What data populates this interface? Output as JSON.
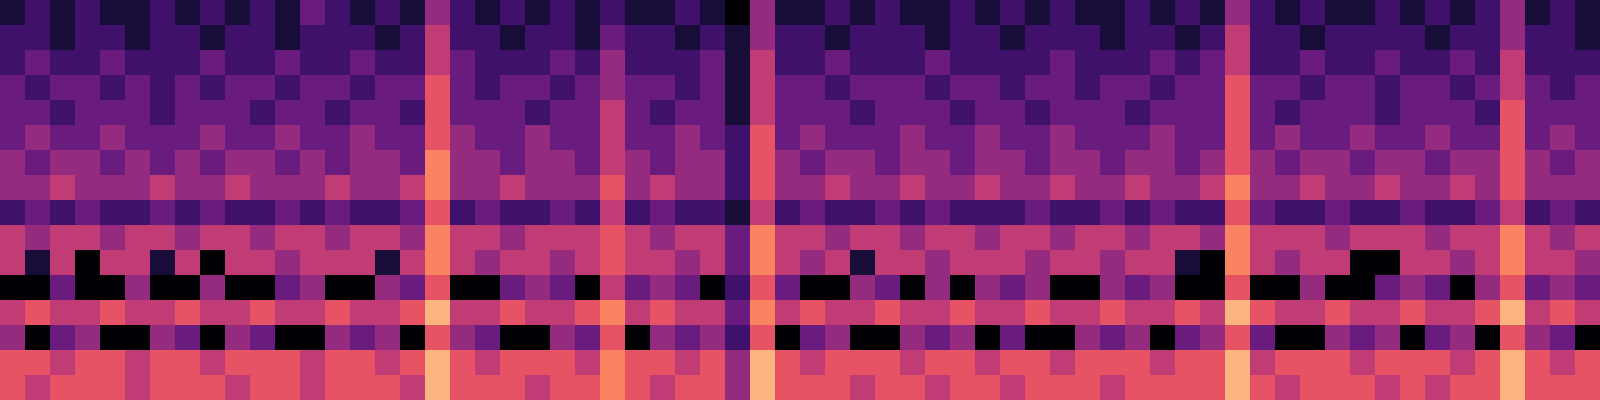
{
  "chart_data": {
    "type": "heatmap",
    "tick_labels": false,
    "cells": [
      [
        1,
        2,
        1,
        2,
        1,
        1,
        2,
        1,
        2,
        1,
        2,
        1,
        3,
        2,
        1,
        2,
        1,
        4,
        2,
        1,
        2,
        1,
        2,
        1,
        2,
        1,
        1,
        2,
        1,
        0,
        4,
        1,
        1,
        2,
        1,
        2,
        1,
        1,
        2,
        1,
        2,
        1,
        2,
        1,
        1,
        2,
        1,
        2,
        1,
        4,
        2,
        1,
        2,
        1,
        1,
        2,
        1,
        2,
        1,
        2,
        4,
        1,
        2,
        1
      ],
      [
        2,
        2,
        1,
        2,
        2,
        1,
        2,
        2,
        1,
        2,
        2,
        1,
        2,
        2,
        2,
        1,
        2,
        5,
        2,
        2,
        1,
        2,
        2,
        1,
        3,
        2,
        2,
        1,
        2,
        1,
        4,
        2,
        2,
        1,
        2,
        2,
        2,
        1,
        2,
        2,
        1,
        2,
        2,
        2,
        1,
        2,
        2,
        1,
        2,
        5,
        2,
        2,
        1,
        2,
        2,
        2,
        2,
        1,
        2,
        2,
        4,
        2,
        2,
        1
      ],
      [
        2,
        3,
        2,
        2,
        3,
        2,
        2,
        2,
        3,
        2,
        2,
        3,
        2,
        2,
        3,
        2,
        2,
        5,
        3,
        2,
        2,
        2,
        3,
        2,
        4,
        2,
        2,
        2,
        3,
        1,
        5,
        2,
        2,
        3,
        2,
        2,
        2,
        3,
        2,
        2,
        2,
        2,
        3,
        2,
        2,
        2,
        3,
        2,
        3,
        5,
        2,
        2,
        3,
        2,
        2,
        3,
        2,
        2,
        3,
        2,
        5,
        2,
        2,
        2
      ],
      [
        3,
        2,
        3,
        3,
        2,
        3,
        2,
        3,
        2,
        3,
        3,
        2,
        3,
        3,
        2,
        3,
        3,
        6,
        3,
        2,
        3,
        3,
        2,
        3,
        4,
        3,
        3,
        2,
        3,
        1,
        5,
        3,
        3,
        2,
        3,
        3,
        3,
        2,
        3,
        3,
        2,
        3,
        3,
        2,
        3,
        3,
        2,
        3,
        3,
        6,
        3,
        3,
        2,
        3,
        3,
        2,
        3,
        3,
        2,
        3,
        5,
        3,
        2,
        3
      ],
      [
        3,
        3,
        2,
        3,
        3,
        3,
        2,
        3,
        3,
        3,
        2,
        3,
        3,
        2,
        3,
        3,
        2,
        6,
        3,
        3,
        3,
        2,
        3,
        3,
        5,
        3,
        2,
        3,
        3,
        1,
        5,
        3,
        3,
        3,
        2,
        3,
        3,
        3,
        2,
        3,
        3,
        2,
        3,
        3,
        3,
        2,
        3,
        3,
        3,
        6,
        3,
        2,
        3,
        3,
        3,
        2,
        3,
        3,
        3,
        2,
        6,
        3,
        3,
        3
      ],
      [
        3,
        4,
        3,
        3,
        4,
        3,
        3,
        3,
        4,
        3,
        3,
        4,
        3,
        3,
        4,
        3,
        3,
        6,
        4,
        3,
        3,
        4,
        3,
        3,
        5,
        3,
        3,
        4,
        3,
        2,
        6,
        3,
        4,
        3,
        3,
        3,
        4,
        3,
        3,
        4,
        3,
        3,
        4,
        3,
        3,
        3,
        4,
        3,
        3,
        6,
        3,
        4,
        3,
        3,
        4,
        3,
        3,
        4,
        3,
        3,
        6,
        3,
        4,
        3
      ],
      [
        4,
        3,
        4,
        4,
        3,
        4,
        3,
        4,
        3,
        4,
        4,
        3,
        4,
        3,
        4,
        4,
        3,
        7,
        4,
        4,
        3,
        4,
        4,
        3,
        5,
        4,
        3,
        4,
        4,
        2,
        6,
        4,
        3,
        4,
        4,
        3,
        4,
        4,
        3,
        4,
        4,
        3,
        4,
        4,
        3,
        4,
        4,
        3,
        4,
        6,
        4,
        3,
        4,
        4,
        3,
        4,
        4,
        3,
        4,
        4,
        6,
        4,
        3,
        4
      ],
      [
        4,
        4,
        5,
        4,
        4,
        4,
        5,
        4,
        4,
        5,
        4,
        4,
        4,
        5,
        4,
        4,
        5,
        7,
        4,
        4,
        5,
        4,
        4,
        4,
        6,
        4,
        5,
        4,
        4,
        2,
        6,
        4,
        4,
        5,
        4,
        4,
        5,
        4,
        4,
        5,
        4,
        4,
        5,
        4,
        4,
        5,
        4,
        4,
        5,
        7,
        4,
        4,
        5,
        4,
        4,
        5,
        4,
        4,
        5,
        4,
        6,
        4,
        4,
        4
      ],
      [
        2,
        3,
        2,
        3,
        2,
        2,
        3,
        2,
        3,
        2,
        2,
        3,
        2,
        3,
        2,
        2,
        3,
        6,
        2,
        3,
        2,
        2,
        3,
        2,
        5,
        2,
        3,
        2,
        2,
        1,
        5,
        2,
        3,
        2,
        2,
        3,
        2,
        3,
        2,
        2,
        2,
        3,
        2,
        2,
        3,
        2,
        3,
        2,
        2,
        6,
        3,
        2,
        2,
        3,
        2,
        2,
        3,
        2,
        2,
        3,
        5,
        2,
        3,
        2
      ],
      [
        5,
        4,
        5,
        5,
        4,
        5,
        5,
        4,
        5,
        5,
        4,
        5,
        5,
        4,
        5,
        5,
        4,
        7,
        5,
        5,
        4,
        5,
        5,
        5,
        6,
        5,
        4,
        5,
        5,
        3,
        7,
        5,
        5,
        4,
        5,
        5,
        4,
        5,
        5,
        4,
        5,
        5,
        4,
        5,
        5,
        4,
        5,
        5,
        4,
        7,
        5,
        5,
        5,
        4,
        5,
        5,
        5,
        4,
        5,
        5,
        7,
        5,
        4,
        5
      ],
      [
        5,
        1,
        5,
        0,
        5,
        5,
        1,
        5,
        0,
        5,
        5,
        4,
        5,
        5,
        5,
        1,
        5,
        7,
        5,
        4,
        5,
        5,
        4,
        5,
        6,
        5,
        5,
        4,
        5,
        3,
        7,
        5,
        4,
        5,
        1,
        5,
        5,
        4,
        5,
        5,
        5,
        4,
        5,
        5,
        4,
        5,
        5,
        1,
        0,
        7,
        5,
        4,
        5,
        5,
        0,
        0,
        5,
        5,
        4,
        5,
        7,
        5,
        5,
        4
      ],
      [
        0,
        0,
        3,
        0,
        0,
        4,
        0,
        0,
        4,
        0,
        0,
        3,
        4,
        0,
        0,
        4,
        3,
        6,
        0,
        0,
        3,
        4,
        3,
        0,
        5,
        3,
        4,
        3,
        0,
        2,
        6,
        3,
        0,
        0,
        4,
        3,
        0,
        4,
        0,
        4,
        3,
        4,
        0,
        0,
        4,
        3,
        4,
        0,
        0,
        6,
        0,
        0,
        4,
        0,
        0,
        3,
        4,
        3,
        0,
        4,
        6,
        3,
        4,
        3
      ],
      [
        5,
        6,
        5,
        5,
        6,
        5,
        5,
        6,
        5,
        5,
        6,
        5,
        5,
        6,
        5,
        5,
        6,
        8,
        5,
        5,
        6,
        5,
        5,
        6,
        7,
        5,
        6,
        5,
        5,
        3,
        7,
        5,
        6,
        5,
        5,
        6,
        5,
        5,
        6,
        5,
        5,
        6,
        5,
        5,
        6,
        5,
        5,
        6,
        5,
        8,
        6,
        5,
        5,
        6,
        5,
        5,
        6,
        5,
        5,
        6,
        8,
        5,
        6,
        5
      ],
      [
        4,
        0,
        3,
        4,
        0,
        0,
        4,
        3,
        0,
        4,
        3,
        0,
        0,
        4,
        3,
        4,
        0,
        6,
        4,
        3,
        0,
        0,
        4,
        3,
        6,
        0,
        4,
        3,
        4,
        2,
        6,
        0,
        3,
        4,
        0,
        0,
        4,
        3,
        4,
        0,
        3,
        0,
        0,
        4,
        3,
        4,
        0,
        3,
        4,
        6,
        3,
        0,
        0,
        4,
        3,
        4,
        0,
        3,
        4,
        0,
        6,
        4,
        3,
        0
      ],
      [
        6,
        6,
        5,
        6,
        6,
        5,
        6,
        6,
        5,
        6,
        6,
        6,
        5,
        6,
        6,
        5,
        6,
        8,
        6,
        5,
        6,
        6,
        6,
        5,
        7,
        6,
        6,
        5,
        6,
        4,
        8,
        6,
        5,
        6,
        6,
        6,
        5,
        6,
        6,
        5,
        6,
        6,
        5,
        6,
        6,
        6,
        5,
        6,
        6,
        8,
        5,
        6,
        6,
        6,
        5,
        6,
        6,
        6,
        5,
        6,
        8,
        6,
        5,
        6
      ],
      [
        6,
        5,
        6,
        6,
        6,
        5,
        6,
        6,
        6,
        5,
        6,
        6,
        5,
        6,
        6,
        6,
        5,
        8,
        6,
        6,
        6,
        5,
        6,
        6,
        7,
        6,
        5,
        6,
        6,
        4,
        8,
        6,
        6,
        6,
        5,
        6,
        6,
        5,
        6,
        6,
        5,
        6,
        6,
        6,
        5,
        6,
        6,
        6,
        6,
        8,
        6,
        5,
        6,
        6,
        6,
        5,
        6,
        5,
        6,
        6,
        8,
        6,
        6,
        6
      ]
    ]
  }
}
